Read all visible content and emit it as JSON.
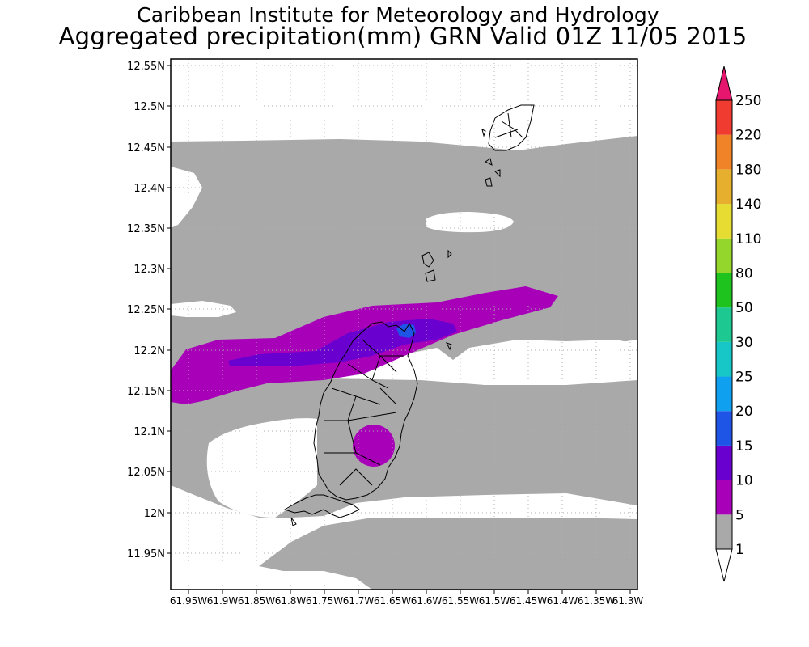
{
  "title": {
    "line1": "Caribbean Institute for Meteorology and Hydrology",
    "line2": "Aggregated precipitation(mm) GRN Valid 01Z 11/05 2015"
  },
  "axes": {
    "lat_ticks": [
      "12.55N",
      "12.5N",
      "12.45N",
      "12.4N",
      "12.35N",
      "12.3N",
      "12.25N",
      "12.2N",
      "12.15N",
      "12.1N",
      "12.05N",
      "12N",
      "11.95N"
    ],
    "lon_ticks": [
      "61.95W",
      "61.9W",
      "61.85W",
      "61.8W",
      "61.75W",
      "61.7W",
      "61.65W",
      "61.6W",
      "61.55W",
      "61.5W",
      "61.45W",
      "61.4W",
      "61.35W",
      "61.3W"
    ]
  },
  "colorbar": {
    "labels": [
      "1",
      "5",
      "10",
      "15",
      "20",
      "25",
      "30",
      "50",
      "80",
      "110",
      "140",
      "180",
      "220",
      "250"
    ],
    "colors": [
      "#ffffff",
      "#a9a9a9",
      "#a800b9",
      "#6a00d0",
      "#1e55e6",
      "#10a0f0",
      "#17c7c7",
      "#1ec891",
      "#1ec31e",
      "#94d62b",
      "#e6dc32",
      "#e6af2d",
      "#f08228",
      "#f03c30",
      "#e6166e"
    ]
  },
  "colors": {
    "frame": "#000000",
    "grid": "#b0b0b0",
    "shade_1_5": "#a9a9a9",
    "shade_5_10": "#a800b9",
    "shade_10_15": "#6a00d0",
    "shade_15_20": "#1e55e6"
  }
}
